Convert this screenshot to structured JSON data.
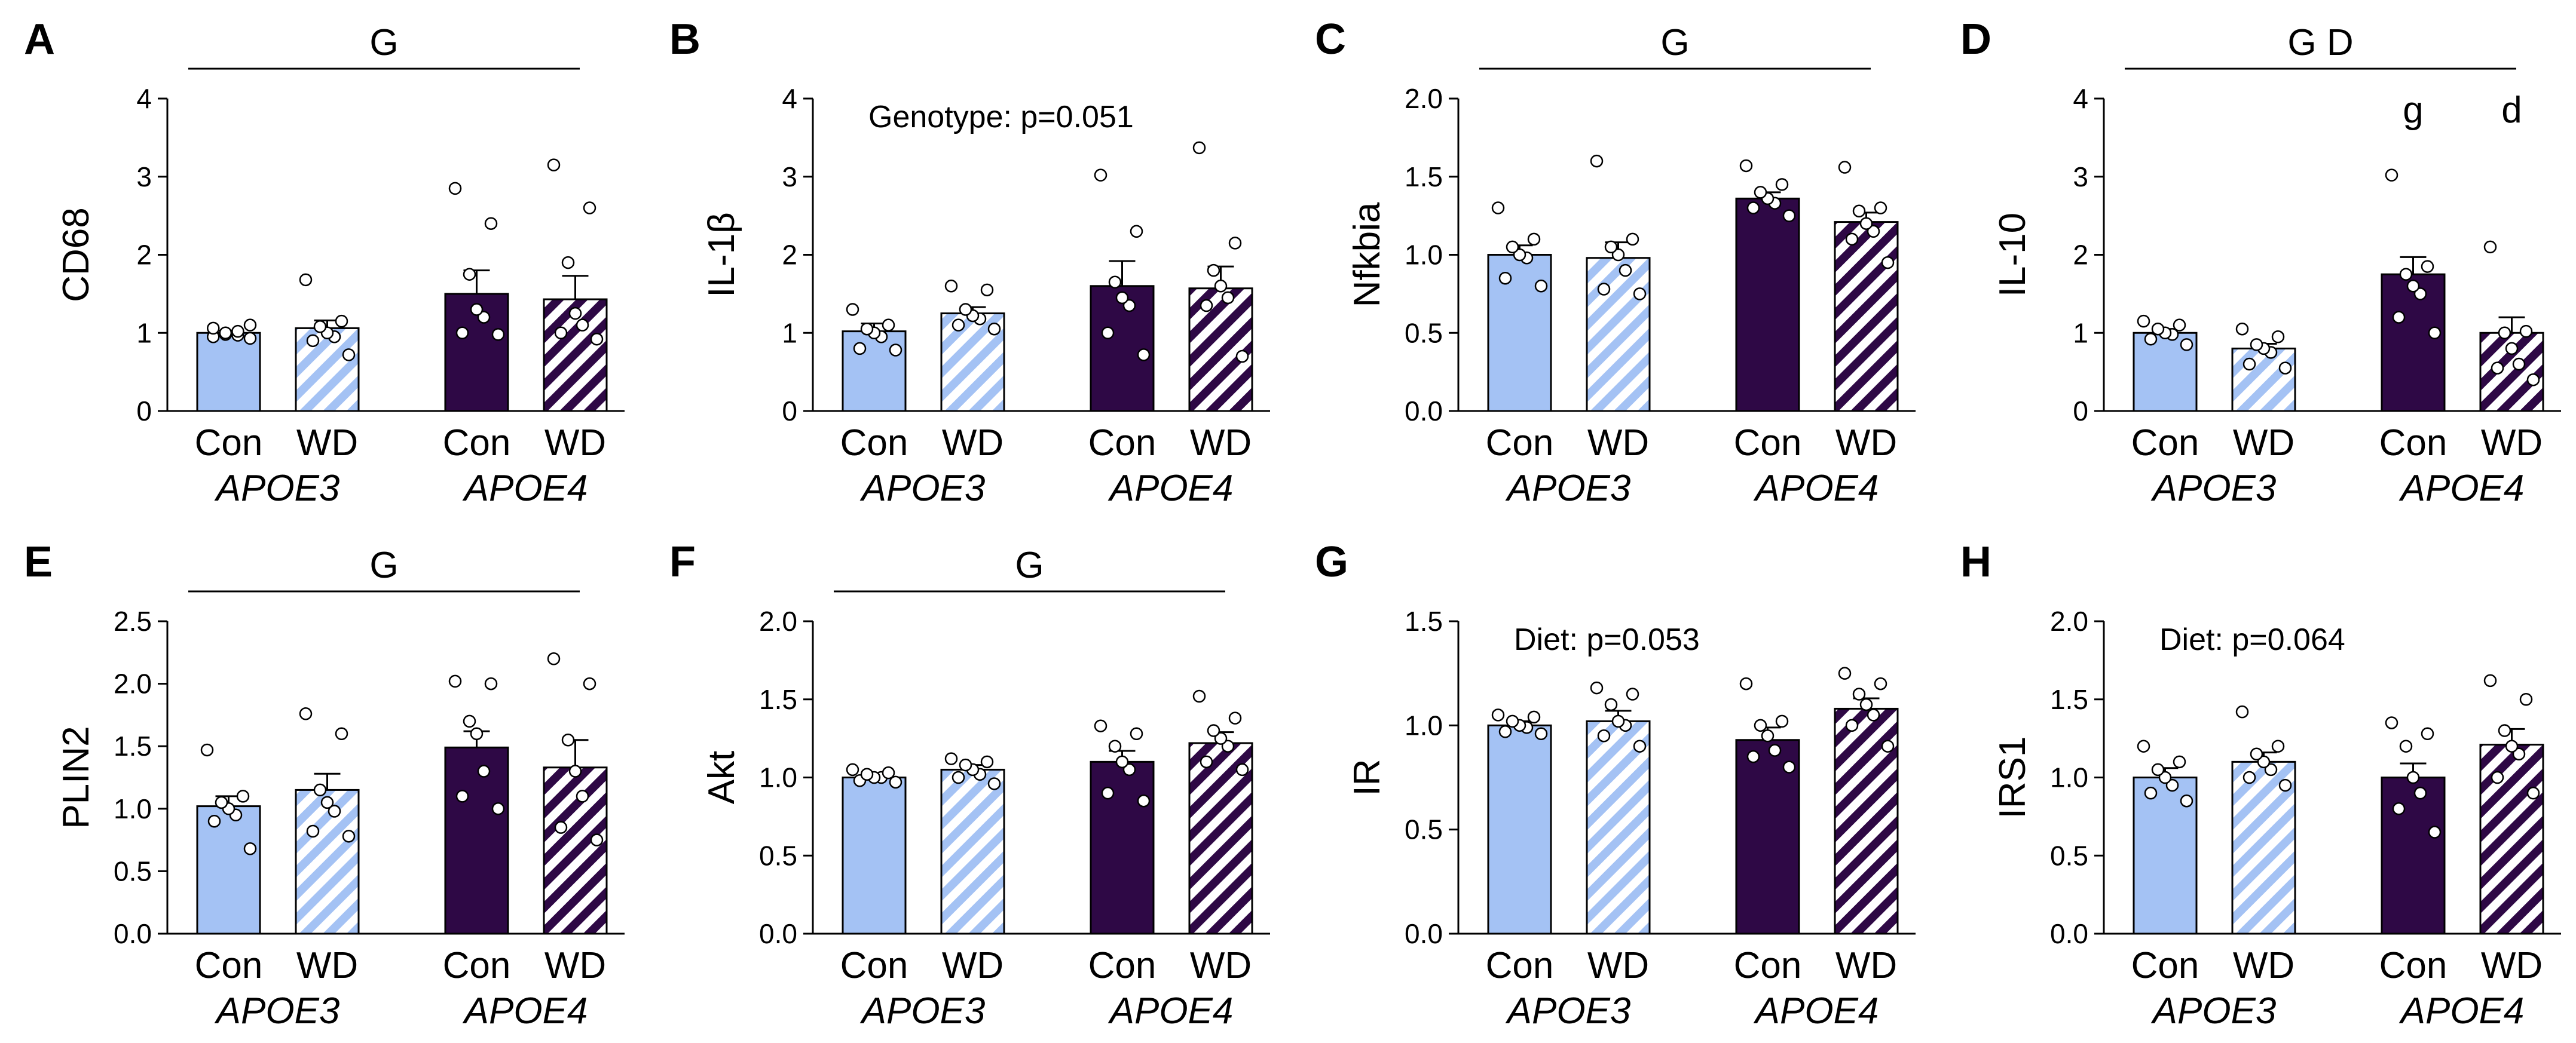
{
  "chart_data": [
    {
      "type": "bar",
      "panel": "A",
      "ylabel": "CD68",
      "ylim": [
        0,
        4
      ],
      "yticks": [
        0,
        1,
        2,
        3,
        4
      ],
      "ytick_labels": [
        "0",
        "1",
        "2",
        "3",
        "4"
      ],
      "categories": [
        "Con",
        "WD",
        "Con",
        "WD"
      ],
      "groups": [
        "APOE3",
        "APOE4"
      ],
      "values": [
        1.0,
        1.06,
        1.5,
        1.43
      ],
      "sem": [
        0.03,
        0.1,
        0.3,
        0.3
      ],
      "points": [
        [
          0.93,
          0.95,
          0.97,
          0.98,
          1.0,
          1.02,
          1.06,
          1.1
        ],
        [
          0.72,
          0.9,
          0.95,
          1.0,
          1.08,
          1.15,
          1.68
        ],
        [
          0.98,
          1.0,
          1.2,
          1.3,
          1.75,
          2.4,
          2.85
        ],
        [
          0.92,
          1.0,
          1.1,
          1.25,
          1.9,
          2.6,
          3.15
        ]
      ],
      "significance": "G",
      "annotation": "",
      "post_hoc": [
        "",
        "",
        "",
        ""
      ]
    },
    {
      "type": "bar",
      "panel": "B",
      "ylabel": "IL-1β",
      "ylim": [
        0,
        4
      ],
      "yticks": [
        0,
        1,
        2,
        3,
        4
      ],
      "ytick_labels": [
        "0",
        "1",
        "2",
        "3",
        "4"
      ],
      "categories": [
        "Con",
        "WD",
        "Con",
        "WD"
      ],
      "groups": [
        "APOE3",
        "APOE4"
      ],
      "values": [
        1.02,
        1.25,
        1.6,
        1.57
      ],
      "sem": [
        0.1,
        0.08,
        0.32,
        0.28
      ],
      "points": [
        [
          0.78,
          0.8,
          0.95,
          1.0,
          1.05,
          1.1,
          1.3
        ],
        [
          1.05,
          1.1,
          1.18,
          1.22,
          1.3,
          1.55,
          1.6
        ],
        [
          0.72,
          1.0,
          1.35,
          1.45,
          1.65,
          2.3,
          3.02
        ],
        [
          0.7,
          1.35,
          1.45,
          1.6,
          1.8,
          2.15,
          3.37
        ]
      ],
      "significance": "",
      "annotation": "Genotype: p=0.051",
      "post_hoc": [
        "",
        "",
        "",
        ""
      ]
    },
    {
      "type": "bar",
      "panel": "C",
      "ylabel": "Nfkbia",
      "ylim": [
        0,
        2.0
      ],
      "yticks": [
        0,
        0.5,
        1.0,
        1.5,
        2.0
      ],
      "ytick_labels": [
        "0.0",
        "0.5",
        "1.0",
        "1.5",
        "2.0"
      ],
      "categories": [
        "Con",
        "WD",
        "Con",
        "WD"
      ],
      "groups": [
        "APOE3",
        "APOE4"
      ],
      "values": [
        1.0,
        0.98,
        1.36,
        1.21
      ],
      "sem": [
        0.06,
        0.1,
        0.04,
        0.06
      ],
      "points": [
        [
          0.8,
          0.85,
          0.98,
          1.0,
          1.05,
          1.1,
          1.3
        ],
        [
          0.75,
          0.78,
          0.9,
          1.0,
          1.05,
          1.1,
          1.6
        ],
        [
          1.25,
          1.3,
          1.33,
          1.36,
          1.4,
          1.45,
          1.57
        ],
        [
          0.95,
          1.1,
          1.15,
          1.2,
          1.28,
          1.3,
          1.56
        ]
      ],
      "significance": "G",
      "annotation": "",
      "post_hoc": [
        "",
        "",
        "",
        ""
      ]
    },
    {
      "type": "bar",
      "panel": "D",
      "ylabel": "IL-10",
      "ylim": [
        0,
        4
      ],
      "yticks": [
        0,
        1,
        2,
        3,
        4
      ],
      "ytick_labels": [
        "0",
        "1",
        "2",
        "3",
        "4"
      ],
      "categories": [
        "Con",
        "WD",
        "Con",
        "WD"
      ],
      "groups": [
        "APOE3",
        "APOE4"
      ],
      "values": [
        1.0,
        0.8,
        1.75,
        1.0
      ],
      "sem": [
        0.05,
        0.06,
        0.22,
        0.2
      ],
      "points": [
        [
          0.85,
          0.92,
          0.98,
          1.0,
          1.05,
          1.1,
          1.15
        ],
        [
          0.55,
          0.6,
          0.75,
          0.8,
          0.85,
          0.95,
          1.05
        ],
        [
          1.0,
          1.2,
          1.5,
          1.6,
          1.75,
          1.85,
          3.02
        ],
        [
          0.4,
          0.55,
          0.6,
          0.8,
          1.0,
          1.02,
          2.1
        ]
      ],
      "significance": "G D",
      "annotation": "",
      "post_hoc": [
        "",
        "",
        "g",
        "d"
      ]
    },
    {
      "type": "bar",
      "panel": "E",
      "ylabel": "PLIN2",
      "ylim": [
        0,
        2.5
      ],
      "yticks": [
        0,
        0.5,
        1.0,
        1.5,
        2.0,
        2.5
      ],
      "ytick_labels": [
        "0.0",
        "0.5",
        "1.0",
        "1.5",
        "2.0",
        "2.5"
      ],
      "categories": [
        "Con",
        "WD",
        "Con",
        "WD"
      ],
      "groups": [
        "APOE3",
        "APOE4"
      ],
      "values": [
        1.02,
        1.15,
        1.49,
        1.33
      ],
      "sem": [
        0.08,
        0.13,
        0.13,
        0.22
      ],
      "points": [
        [
          0.68,
          0.9,
          0.95,
          1.0,
          1.05,
          1.1,
          1.47
        ],
        [
          0.78,
          0.82,
          0.98,
          1.05,
          1.15,
          1.6,
          1.76
        ],
        [
          1.0,
          1.1,
          1.3,
          1.6,
          1.7,
          2.0,
          2.02
        ],
        [
          0.75,
          0.85,
          1.1,
          1.3,
          1.55,
          2.0,
          2.2
        ]
      ],
      "significance": "G",
      "annotation": "",
      "post_hoc": [
        "",
        "",
        "",
        ""
      ]
    },
    {
      "type": "bar",
      "panel": "F",
      "ylabel": "Akt",
      "ylim": [
        0,
        2.0
      ],
      "yticks": [
        0,
        0.5,
        1.0,
        1.5,
        2.0
      ],
      "ytick_labels": [
        "0.0",
        "0.5",
        "1.0",
        "1.5",
        "2.0"
      ],
      "categories": [
        "Con",
        "WD",
        "Con",
        "WD"
      ],
      "groups": [
        "APOE3",
        "APOE4"
      ],
      "values": [
        1.0,
        1.05,
        1.1,
        1.22
      ],
      "sem": [
        0.02,
        0.03,
        0.07,
        0.07
      ],
      "points": [
        [
          0.97,
          0.98,
          1.0,
          1.0,
          1.02,
          1.03,
          1.05
        ],
        [
          0.96,
          1.0,
          1.02,
          1.05,
          1.08,
          1.1,
          1.12
        ],
        [
          0.85,
          0.9,
          1.05,
          1.1,
          1.2,
          1.28,
          1.33
        ],
        [
          1.05,
          1.1,
          1.2,
          1.25,
          1.3,
          1.38,
          1.52
        ]
      ],
      "significance": "G",
      "annotation": "",
      "post_hoc": [
        "",
        "",
        "",
        ""
      ]
    },
    {
      "type": "bar",
      "panel": "G",
      "ylabel": "IR",
      "ylim": [
        0,
        1.5
      ],
      "yticks": [
        0,
        0.5,
        1.0,
        1.5
      ],
      "ytick_labels": [
        "0.0",
        "0.5",
        "1.0",
        "1.5"
      ],
      "categories": [
        "Con",
        "WD",
        "Con",
        "WD"
      ],
      "groups": [
        "APOE3",
        "APOE4"
      ],
      "values": [
        1.0,
        1.02,
        0.93,
        1.08
      ],
      "sem": [
        0.02,
        0.05,
        0.06,
        0.05
      ],
      "points": [
        [
          0.96,
          0.97,
          0.99,
          1.0,
          1.02,
          1.04,
          1.05
        ],
        [
          0.9,
          0.95,
          1.0,
          1.02,
          1.1,
          1.15,
          1.18
        ],
        [
          0.8,
          0.85,
          0.88,
          0.95,
          1.0,
          1.02,
          1.2
        ],
        [
          0.9,
          1.0,
          1.05,
          1.1,
          1.15,
          1.2,
          1.25
        ]
      ],
      "significance": "",
      "annotation": "Diet: p=0.053",
      "post_hoc": [
        "",
        "",
        "",
        ""
      ]
    },
    {
      "type": "bar",
      "panel": "H",
      "ylabel": "IRS1",
      "ylim": [
        0,
        2.0
      ],
      "yticks": [
        0,
        0.5,
        1.0,
        1.5,
        2.0
      ],
      "ytick_labels": [
        "0.0",
        "0.5",
        "1.0",
        "1.5",
        "2.0"
      ],
      "categories": [
        "Con",
        "WD",
        "Con",
        "WD"
      ],
      "groups": [
        "APOE3",
        "APOE4"
      ],
      "values": [
        1.0,
        1.1,
        1.0,
        1.21
      ],
      "sem": [
        0.06,
        0.06,
        0.09,
        0.1
      ],
      "points": [
        [
          0.85,
          0.9,
          0.95,
          1.0,
          1.05,
          1.1,
          1.2
        ],
        [
          0.95,
          1.0,
          1.05,
          1.1,
          1.15,
          1.2,
          1.42
        ],
        [
          0.65,
          0.8,
          0.9,
          1.0,
          1.2,
          1.28,
          1.35
        ],
        [
          0.9,
          1.0,
          1.15,
          1.2,
          1.3,
          1.5,
          1.62
        ]
      ],
      "significance": "",
      "annotation": "Diet: p=0.064",
      "post_hoc": [
        "",
        "",
        "",
        ""
      ]
    }
  ],
  "legend": {
    "colors": {
      "apoe3": "#a4c2f4",
      "apoe4": "#2e0845",
      "stroke": "#000000",
      "stripe": "#ffffff"
    }
  }
}
